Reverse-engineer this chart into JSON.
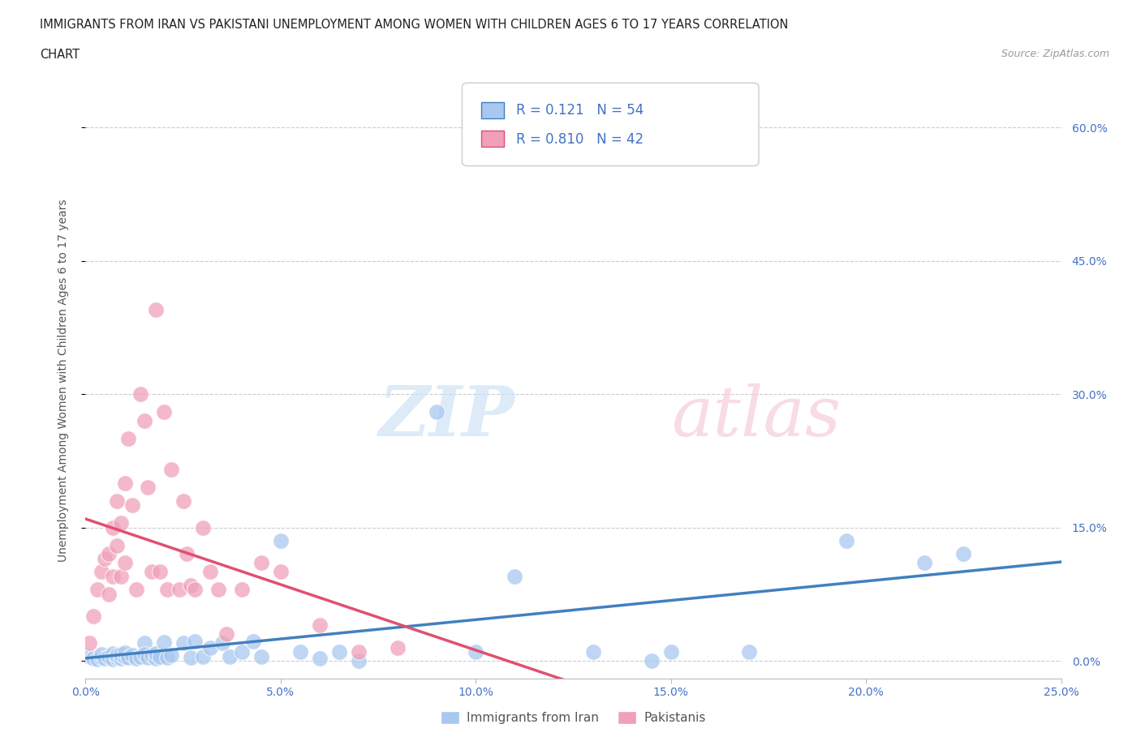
{
  "title_line1": "IMMIGRANTS FROM IRAN VS PAKISTANI UNEMPLOYMENT AMONG WOMEN WITH CHILDREN AGES 6 TO 17 YEARS CORRELATION",
  "title_line2": "CHART",
  "source_text": "Source: ZipAtlas.com",
  "ylabel": "Unemployment Among Women with Children Ages 6 to 17 years",
  "xlim": [
    0.0,
    0.25
  ],
  "ylim": [
    -0.02,
    0.65
  ],
  "watermark_zip": "ZIP",
  "watermark_atlas": "atlas",
  "legend_label1": "Immigrants from Iran",
  "legend_label2": "Pakistanis",
  "R1": "0.121",
  "N1": "54",
  "R2": "0.810",
  "N2": "42",
  "color_iran": "#a8c8f0",
  "color_pakistan": "#f0a0b8",
  "color_iran_line": "#4080c0",
  "color_pakistan_line": "#e05070",
  "color_text_blue": "#4472c4",
  "iran_scatter_x": [
    0.001,
    0.002,
    0.003,
    0.004,
    0.004,
    0.005,
    0.006,
    0.007,
    0.007,
    0.008,
    0.008,
    0.009,
    0.009,
    0.01,
    0.01,
    0.011,
    0.012,
    0.013,
    0.014,
    0.015,
    0.015,
    0.016,
    0.017,
    0.018,
    0.018,
    0.019,
    0.02,
    0.021,
    0.022,
    0.025,
    0.027,
    0.028,
    0.03,
    0.032,
    0.035,
    0.037,
    0.04,
    0.043,
    0.045,
    0.05,
    0.055,
    0.06,
    0.065,
    0.07,
    0.09,
    0.1,
    0.11,
    0.13,
    0.145,
    0.15,
    0.17,
    0.195,
    0.215,
    0.225
  ],
  "iran_scatter_y": [
    0.005,
    0.003,
    0.002,
    0.004,
    0.007,
    0.003,
    0.005,
    0.008,
    0.002,
    0.004,
    0.006,
    0.003,
    0.007,
    0.005,
    0.009,
    0.004,
    0.006,
    0.003,
    0.005,
    0.02,
    0.007,
    0.004,
    0.006,
    0.003,
    0.008,
    0.005,
    0.021,
    0.004,
    0.006,
    0.02,
    0.004,
    0.022,
    0.005,
    0.015,
    0.02,
    0.005,
    0.01,
    0.022,
    0.005,
    0.135,
    0.01,
    0.003,
    0.01,
    0.0,
    0.28,
    0.01,
    0.095,
    0.01,
    0.0,
    0.01,
    0.01,
    0.135,
    0.11,
    0.12
  ],
  "pak_scatter_x": [
    0.001,
    0.002,
    0.003,
    0.004,
    0.005,
    0.006,
    0.006,
    0.007,
    0.007,
    0.008,
    0.008,
    0.009,
    0.009,
    0.01,
    0.01,
    0.011,
    0.012,
    0.013,
    0.014,
    0.015,
    0.016,
    0.017,
    0.018,
    0.019,
    0.02,
    0.021,
    0.022,
    0.024,
    0.025,
    0.026,
    0.027,
    0.028,
    0.03,
    0.032,
    0.034,
    0.036,
    0.04,
    0.045,
    0.05,
    0.06,
    0.07,
    0.08
  ],
  "pak_scatter_y": [
    0.02,
    0.05,
    0.08,
    0.1,
    0.115,
    0.12,
    0.075,
    0.095,
    0.15,
    0.13,
    0.18,
    0.095,
    0.155,
    0.11,
    0.2,
    0.25,
    0.175,
    0.08,
    0.3,
    0.27,
    0.195,
    0.1,
    0.395,
    0.1,
    0.28,
    0.08,
    0.215,
    0.08,
    0.18,
    0.12,
    0.085,
    0.08,
    0.15,
    0.1,
    0.08,
    0.03,
    0.08,
    0.11,
    0.1,
    0.04,
    0.01,
    0.015
  ],
  "background_color": "#ffffff",
  "grid_color": "#cccccc",
  "ytick_vals": [
    0.0,
    0.15,
    0.3,
    0.45,
    0.6
  ],
  "xtick_vals": [
    0.0,
    0.05,
    0.1,
    0.15,
    0.2,
    0.25
  ]
}
